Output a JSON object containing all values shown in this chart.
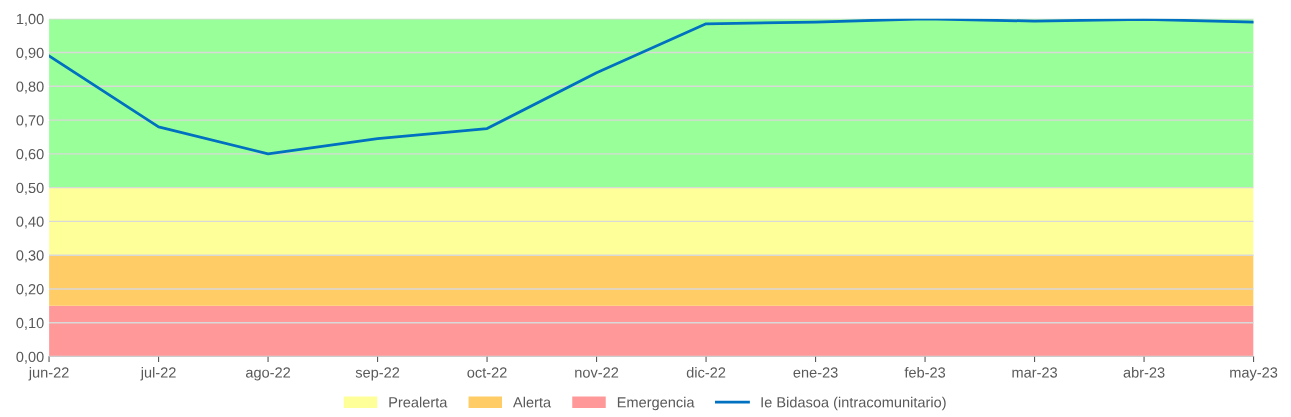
{
  "chart_data": {
    "type": "area",
    "stacked": true,
    "categories": [
      "jun-22",
      "jul-22",
      "ago-22",
      "sep-22",
      "oct-22",
      "nov-22",
      "dic-22",
      "ene-23",
      "feb-23",
      "mar-23",
      "abr-23",
      "may-23"
    ],
    "series": [
      {
        "name": "Emergencia",
        "color": "#ff9999",
        "values": [
          0.15,
          0.15,
          0.15,
          0.15,
          0.15,
          0.15,
          0.15,
          0.15,
          0.15,
          0.15,
          0.15,
          0.15
        ]
      },
      {
        "name": "Alerta",
        "color": "#ffcc66",
        "values": [
          0.15,
          0.15,
          0.15,
          0.15,
          0.15,
          0.15,
          0.15,
          0.15,
          0.15,
          0.15,
          0.15,
          0.15
        ]
      },
      {
        "name": "Prealerta",
        "color": "#ffff99",
        "values": [
          0.2,
          0.2,
          0.2,
          0.2,
          0.2,
          0.2,
          0.2,
          0.2,
          0.2,
          0.2,
          0.2,
          0.2
        ]
      },
      {
        "color": "#99ff99",
        "values": [
          0.5,
          0.5,
          0.5,
          0.5,
          0.5,
          0.5,
          0.5,
          0.5,
          0.5,
          0.5,
          0.5,
          0.5
        ]
      },
      {
        "name": "Ie Bidasoa (intracomunitario)",
        "color": "#0070c0",
        "type": "line",
        "values": [
          0.89,
          0.68,
          0.6,
          0.645,
          0.675,
          0.84,
          0.985,
          0.99,
          1.0,
          0.993,
          0.998,
          0.99
        ]
      }
    ],
    "ylim": [
      0,
      1
    ],
    "yticks": [
      {
        "value": 0,
        "label": "0,00"
      },
      {
        "value": 0.1,
        "label": "0,10"
      },
      {
        "value": 0.2,
        "label": "0,20"
      },
      {
        "value": 0.3,
        "label": "0,30"
      },
      {
        "value": 0.4,
        "label": "0,40"
      },
      {
        "value": 0.5,
        "label": "0,50"
      },
      {
        "value": 0.6,
        "label": "0,60"
      },
      {
        "value": 0.7,
        "label": "0,70"
      },
      {
        "value": 0.8,
        "label": "0,80"
      },
      {
        "value": 0.9,
        "label": "0,90"
      },
      {
        "value": 1,
        "label": "1,00"
      }
    ],
    "grid": "y",
    "legend": "bottom",
    "line_style": "solid"
  }
}
